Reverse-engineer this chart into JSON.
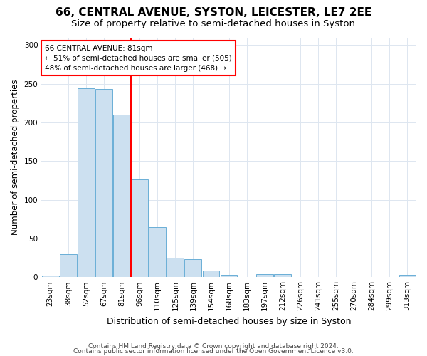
{
  "title": "66, CENTRAL AVENUE, SYSTON, LEICESTER, LE7 2EE",
  "subtitle": "Size of property relative to semi-detached houses in Syston",
  "xlabel": "Distribution of semi-detached houses by size in Syston",
  "ylabel": "Number of semi-detached properties",
  "categories": [
    "23sqm",
    "38sqm",
    "52sqm",
    "67sqm",
    "81sqm",
    "96sqm",
    "110sqm",
    "125sqm",
    "139sqm",
    "154sqm",
    "168sqm",
    "183sqm",
    "197sqm",
    "212sqm",
    "226sqm",
    "241sqm",
    "255sqm",
    "270sqm",
    "284sqm",
    "299sqm",
    "313sqm"
  ],
  "values": [
    2,
    30,
    244,
    243,
    210,
    126,
    65,
    25,
    23,
    8,
    3,
    0,
    4,
    4,
    0,
    0,
    0,
    0,
    0,
    0,
    3
  ],
  "bar_color": "#cce0f0",
  "bar_edge_color": "#6aaed6",
  "red_line_x": 4.5,
  "annotation_text": "66 CENTRAL AVENUE: 81sqm\n← 51% of semi-detached houses are smaller (505)\n48% of semi-detached houses are larger (468) →",
  "annotation_box_color": "white",
  "annotation_box_edge_color": "red",
  "footer_line1": "Contains HM Land Registry data © Crown copyright and database right 2024.",
  "footer_line2": "Contains public sector information licensed under the Open Government Licence v3.0.",
  "ylim": [
    0,
    310
  ],
  "yticks": [
    0,
    50,
    100,
    150,
    200,
    250,
    300
  ],
  "title_fontsize": 11,
  "subtitle_fontsize": 9.5,
  "axis_label_fontsize": 8.5,
  "tick_fontsize": 7.5,
  "annotation_fontsize": 7.5,
  "footer_fontsize": 6.5,
  "background_color": "#ffffff",
  "grid_color": "#dde6f0"
}
